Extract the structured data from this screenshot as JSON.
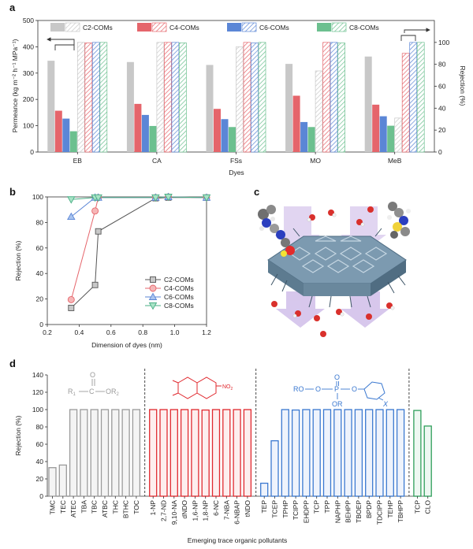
{
  "panels": {
    "a": "a",
    "b": "b",
    "c": "c",
    "d": "d"
  },
  "colors": {
    "C2": "#c8c8c8",
    "C4": "#e5656b",
    "C6": "#5b86d6",
    "C8": "#6cc08f",
    "panel_d": [
      "#9a9a9a",
      "#e0282e",
      "#3a78d0",
      "#2e9e5a"
    ]
  },
  "chart_data": [
    {
      "panel": "a",
      "type": "bar",
      "xlabel": "Dyes",
      "ylabel": "Permeance (kg m⁻² h⁻¹ MPa⁻¹)",
      "y2label": "Rejection (%)",
      "ylim": [
        0,
        500
      ],
      "y2lim": [
        0,
        120
      ],
      "yticks": [
        "0",
        "100",
        "200",
        "300",
        "400",
        "500"
      ],
      "y2ticks": [
        "0",
        "20",
        "40",
        "60",
        "80",
        "100"
      ],
      "categories": [
        "EB",
        "CA",
        "FSs",
        "MO",
        "MeB"
      ],
      "legend": [
        "C2-COMs",
        "C4-COMs",
        "C6-COMs",
        "C8-COMs"
      ],
      "series": [
        {
          "name": "C2-COMs",
          "kind": "permeance",
          "values": [
            347,
            342,
            331,
            335,
            363
          ]
        },
        {
          "name": "C4-COMs",
          "kind": "permeance",
          "values": [
            157,
            183,
            164,
            214,
            180
          ]
        },
        {
          "name": "C6-COMs",
          "kind": "permeance",
          "values": [
            127,
            141,
            125,
            114,
            136
          ]
        },
        {
          "name": "C8-COMs",
          "kind": "permeance",
          "values": [
            79,
            99,
            95,
            95,
            100
          ]
        },
        {
          "name": "C2-COMs",
          "kind": "rejection",
          "values": [
            100,
            100,
            96,
            74,
            31
          ]
        },
        {
          "name": "C4-COMs",
          "kind": "rejection",
          "values": [
            99.5,
            100,
            100,
            100,
            90
          ]
        },
        {
          "name": "C6-COMs",
          "kind": "rejection",
          "values": [
            100,
            100,
            99.5,
            100,
            100
          ]
        },
        {
          "name": "C8-COMs",
          "kind": "rejection",
          "values": [
            100,
            99.6,
            100,
            99.5,
            100
          ]
        }
      ]
    },
    {
      "panel": "b",
      "type": "line",
      "xlabel": "Dimension of dyes (nm)",
      "ylabel": "Rejection (%)",
      "xlim": [
        0.2,
        1.2
      ],
      "ylim": [
        0,
        100
      ],
      "xticks": [
        "0.2",
        "0.4",
        "0.6",
        "0.8",
        "1.0",
        "1.2"
      ],
      "yticks": [
        "0",
        "20",
        "40",
        "60",
        "80",
        "100"
      ],
      "series": [
        {
          "name": "C2-COMs",
          "x": [
            0.35,
            0.5,
            0.52,
            0.88,
            0.96,
            1.2
          ],
          "y": [
            13,
            31,
            73,
            99,
            99.5,
            99.5
          ]
        },
        {
          "name": "C4-COMs",
          "x": [
            0.35,
            0.5,
            0.52,
            0.88,
            0.96,
            1.2
          ],
          "y": [
            19.5,
            89,
            99.5,
            99.5,
            100,
            99.5
          ]
        },
        {
          "name": "C6-COMs",
          "x": [
            0.35,
            0.5,
            0.52,
            0.88,
            0.96,
            1.2
          ],
          "y": [
            84.5,
            99.5,
            99.5,
            99.5,
            100,
            99.5
          ]
        },
        {
          "name": "C8-COMs",
          "x": [
            0.35,
            0.5,
            0.52,
            0.88,
            0.96,
            1.2
          ],
          "y": [
            98,
            99.5,
            99.5,
            99.5,
            100,
            99.5
          ]
        }
      ]
    },
    {
      "panel": "d",
      "type": "bar",
      "xlabel": "Emerging trace organic pollutants",
      "ylabel": "Rejection (%)",
      "ylim": [
        0,
        140
      ],
      "yticks": [
        "0",
        "20",
        "40",
        "60",
        "80",
        "100",
        "120",
        "140"
      ],
      "groups": [
        {
          "categories": [
            "TMC",
            "TEC",
            "ATEC",
            "TBA",
            "TBC",
            "ATBC",
            "THC",
            "BTHC",
            "TOC"
          ],
          "values": [
            33,
            36,
            100,
            100,
            100,
            100,
            100,
            100,
            100
          ],
          "structure": {
            "r1": "R",
            "r1sub": "1",
            "c": "C",
            "o": "O",
            "or2": "OR",
            "or2sub": "2"
          }
        },
        {
          "categories": [
            "1-NP",
            "2,7-ND",
            "9,10-NA",
            "dNDO",
            "1,6-NP",
            "1,8-NP",
            "6-NC",
            "7-NBA",
            "6-NBAP",
            "tNDO"
          ],
          "values": [
            100,
            100,
            100,
            100,
            100,
            99.5,
            100,
            100,
            100,
            100
          ],
          "structure": {
            "no2": "NO",
            "no2sub": "2"
          }
        },
        {
          "categories": [
            "TEP",
            "TCEP",
            "TPHP",
            "TCIPP",
            "EHDPP",
            "TCP",
            "TPP",
            "NAPHP",
            "BEHPP",
            "TBOEP",
            "BPDP",
            "TDCIPP",
            "TEHP",
            "TBHPP"
          ],
          "values": [
            15,
            64,
            100,
            99.5,
            100,
            100,
            100,
            100,
            100,
            100,
            100,
            100,
            100,
            100
          ],
          "structure": {
            "ro": "RO",
            "p": "P",
            "o": "O",
            "or": "OR",
            "x": "X"
          }
        },
        {
          "categories": [
            "TCP",
            "CLO"
          ],
          "values": [
            99,
            81
          ]
        }
      ]
    }
  ]
}
